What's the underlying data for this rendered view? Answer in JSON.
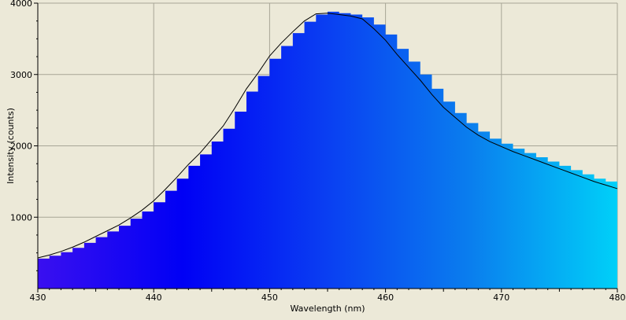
{
  "chart_data": {
    "type": "area",
    "title": "",
    "xlabel": "Wavelength (nm)",
    "ylabel": "Intensity (counts)",
    "xlim": [
      430,
      480
    ],
    "ylim": [
      0,
      4000
    ],
    "x_ticks": [
      430,
      440,
      450,
      460,
      470,
      480
    ],
    "y_ticks": [
      1000,
      2000,
      3000,
      4000
    ],
    "grid": true,
    "fill_gradient": [
      "#3a0ff0",
      "#0000f5",
      "#0a3ff2",
      "#0a7fee",
      "#00d0f8"
    ],
    "series": [
      {
        "style": "stepped-fill",
        "x": [
          430,
          431,
          432,
          433,
          434,
          435,
          436,
          437,
          438,
          439,
          440,
          441,
          442,
          443,
          444,
          445,
          446,
          447,
          448,
          449,
          450,
          451,
          452,
          453,
          454,
          455,
          456,
          457,
          458,
          459,
          460,
          461,
          462,
          463,
          464,
          465,
          466,
          467,
          468,
          469,
          470,
          471,
          472,
          473,
          474,
          475,
          476,
          477,
          478,
          479,
          480
        ],
        "y": [
          420,
          460,
          510,
          570,
          640,
          720,
          800,
          880,
          980,
          1080,
          1210,
          1370,
          1540,
          1720,
          1880,
          2060,
          2240,
          2480,
          2760,
          2980,
          3220,
          3400,
          3580,
          3740,
          3840,
          3880,
          3860,
          3840,
          3800,
          3700,
          3560,
          3360,
          3180,
          3000,
          2800,
          2620,
          2460,
          2320,
          2200,
          2100,
          2030,
          1960,
          1900,
          1840,
          1780,
          1720,
          1660,
          1600,
          1540,
          1500,
          1470
        ]
      },
      {
        "style": "line",
        "color": "#000000",
        "x": [
          430,
          431,
          432,
          433,
          434,
          435,
          436,
          437,
          438,
          439,
          440,
          441,
          442,
          443,
          444,
          445,
          446,
          447,
          448,
          449,
          450,
          451,
          452,
          453,
          454,
          455,
          456,
          457,
          458,
          459,
          460,
          461,
          462,
          463,
          464,
          465,
          466,
          467,
          468,
          469,
          470,
          471,
          472,
          473,
          474,
          475,
          476,
          477,
          478,
          479,
          480
        ],
        "y": [
          430,
          470,
          520,
          580,
          650,
          730,
          810,
          890,
          990,
          1100,
          1230,
          1390,
          1560,
          1740,
          1900,
          2090,
          2280,
          2530,
          2800,
          3020,
          3260,
          3440,
          3600,
          3750,
          3850,
          3860,
          3840,
          3820,
          3780,
          3640,
          3480,
          3280,
          3100,
          2920,
          2720,
          2540,
          2400,
          2260,
          2150,
          2060,
          1990,
          1920,
          1860,
          1800,
          1740,
          1680,
          1620,
          1560,
          1500,
          1450,
          1400
        ]
      }
    ]
  }
}
